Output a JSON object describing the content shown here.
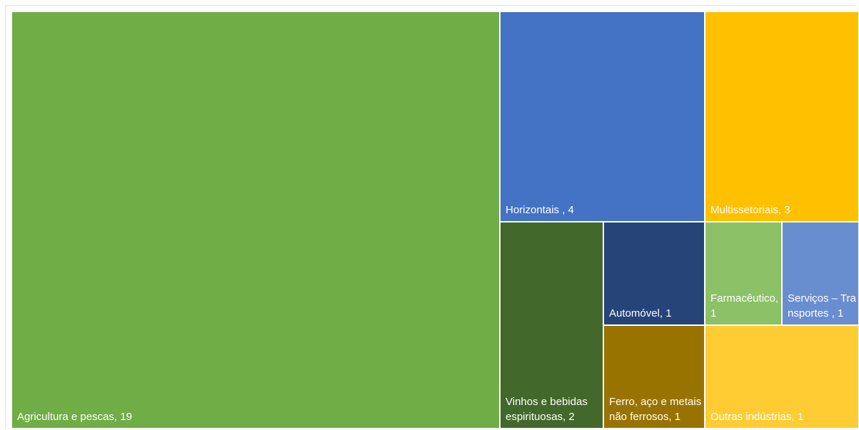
{
  "chart_data": {
    "type": "treemap",
    "title": "",
    "items": [
      {
        "label": "Agricultura e pescas, 19",
        "name": "Agricultura e pescas",
        "value": 19,
        "color": "#70AD47"
      },
      {
        "label": "Horizontais , 4",
        "name": "Horizontais",
        "value": 4,
        "color": "#4472C4"
      },
      {
        "label": "Multissetoriais, 3",
        "name": "Multissetoriais",
        "value": 3,
        "color": "#FFC000"
      },
      {
        "label": "Vinhos e bebidas espirituosas, 2",
        "name": "Vinhos e bebidas espirituosas",
        "value": 2,
        "color": "#43682B"
      },
      {
        "label": "Automóvel, 1",
        "name": "Automóvel",
        "value": 1,
        "color": "#264478"
      },
      {
        "label": "Ferro, aço e metais não ferrosos, 1",
        "name": "Ferro, aço e metais não ferrosos",
        "value": 1,
        "color": "#997300"
      },
      {
        "label": "Farmacêutico, 1",
        "name": "Farmacêutico",
        "value": 1,
        "color": "#8CC168"
      },
      {
        "label": "Serviços – Transportes , 1",
        "name": "Serviços – Transportes",
        "value": 1,
        "color": "#698ED0"
      },
      {
        "label": "Outras indústrias, 1",
        "name": "Outras indústrias",
        "value": 1,
        "color": "#FFCD33"
      }
    ]
  }
}
